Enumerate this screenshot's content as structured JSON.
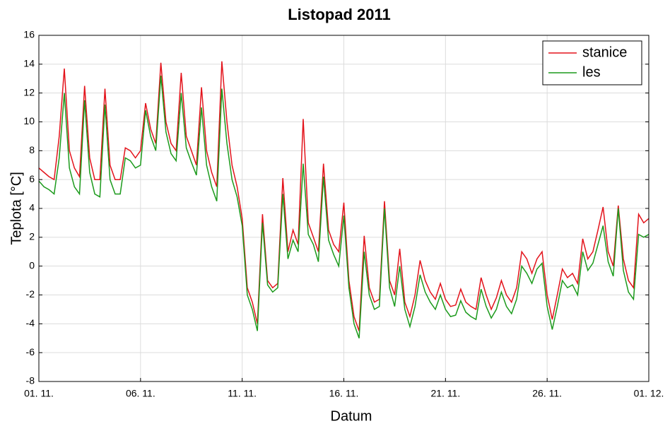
{
  "chart_data": {
    "type": "line",
    "title": "Listopad 2011",
    "xlabel": "Datum",
    "ylabel": "Teplota [°C]",
    "x": [
      0,
      0.25,
      0.5,
      0.75,
      1,
      1.25,
      1.5,
      1.75,
      2,
      2.25,
      2.5,
      2.75,
      3,
      3.25,
      3.5,
      3.75,
      4,
      4.25,
      4.5,
      4.75,
      5,
      5.25,
      5.5,
      5.75,
      6,
      6.25,
      6.5,
      6.75,
      7,
      7.25,
      7.5,
      7.75,
      8,
      8.25,
      8.5,
      8.75,
      9,
      9.25,
      9.5,
      9.75,
      10,
      10.25,
      10.5,
      10.75,
      11,
      11.25,
      11.5,
      11.75,
      12,
      12.25,
      12.5,
      12.75,
      13,
      13.25,
      13.5,
      13.75,
      14,
      14.25,
      14.5,
      14.75,
      15,
      15.25,
      15.5,
      15.75,
      16,
      16.25,
      16.5,
      16.75,
      17,
      17.25,
      17.5,
      17.75,
      18,
      18.25,
      18.5,
      18.75,
      19,
      19.25,
      19.5,
      19.75,
      20,
      20.25,
      20.5,
      20.75,
      21,
      21.25,
      21.5,
      21.75,
      22,
      22.25,
      22.5,
      22.75,
      23,
      23.25,
      23.5,
      23.75,
      24,
      24.25,
      24.5,
      24.75,
      25,
      25.25,
      25.5,
      25.75,
      26,
      26.25,
      26.5,
      26.75,
      27,
      27.25,
      27.5,
      27.75,
      28,
      28.25,
      28.5,
      28.75,
      29,
      29.25,
      29.5,
      29.75,
      30
    ],
    "series": [
      {
        "name": "stanice",
        "color": "#e3131b",
        "values": [
          6.8,
          6.5,
          6.2,
          6.0,
          9.0,
          13.7,
          8.0,
          6.8,
          6.2,
          12.5,
          7.5,
          6.0,
          6.0,
          12.3,
          7.0,
          6.0,
          6.0,
          8.2,
          8.0,
          7.5,
          8.0,
          11.3,
          9.5,
          8.5,
          14.1,
          10.0,
          8.5,
          8.0,
          13.4,
          9.0,
          8.0,
          7.0,
          12.4,
          8.0,
          6.5,
          5.5,
          14.2,
          10.0,
          7.0,
          5.5,
          3.3,
          -1.5,
          -2.5,
          -4.0,
          3.6,
          -1.0,
          -1.5,
          -1.2,
          6.1,
          1.0,
          2.5,
          1.5,
          10.2,
          3.0,
          2.0,
          1.0,
          7.1,
          2.5,
          1.5,
          1.0,
          4.4,
          -1.0,
          -3.5,
          -4.5,
          2.1,
          -1.5,
          -2.5,
          -2.3,
          4.5,
          -1.0,
          -2.0,
          1.2,
          -2.5,
          -3.5,
          -2.0,
          0.4,
          -1.0,
          -1.8,
          -2.3,
          -1.2,
          -2.3,
          -2.8,
          -2.7,
          -1.6,
          -2.5,
          -2.8,
          -3.0,
          -0.8,
          -2.0,
          -3.0,
          -2.2,
          -1.0,
          -2.0,
          -2.5,
          -1.5,
          1.0,
          0.5,
          -0.5,
          0.5,
          1.0,
          -2.0,
          -3.7,
          -2.0,
          -0.2,
          -0.8,
          -0.5,
          -1.2,
          1.9,
          0.5,
          1.0,
          2.5,
          4.1,
          1.0,
          0.0,
          4.2,
          0.5,
          -1.0,
          -1.5,
          3.6,
          3.0,
          3.3
        ]
      },
      {
        "name": "les",
        "color": "#1c9a1c",
        "values": [
          5.9,
          5.5,
          5.3,
          5.0,
          7.5,
          12.0,
          6.8,
          5.5,
          5.0,
          11.5,
          6.5,
          5.0,
          4.8,
          11.2,
          6.0,
          5.0,
          5.0,
          7.5,
          7.3,
          6.8,
          7.0,
          10.8,
          9.0,
          8.0,
          13.2,
          9.3,
          7.8,
          7.3,
          12.0,
          8.2,
          7.2,
          6.3,
          11.0,
          7.0,
          5.5,
          4.5,
          12.3,
          8.5,
          6.0,
          4.8,
          2.8,
          -2.0,
          -3.0,
          -4.5,
          3.0,
          -1.3,
          -1.8,
          -1.5,
          5.0,
          0.5,
          1.8,
          1.0,
          7.1,
          2.2,
          1.5,
          0.3,
          6.2,
          1.8,
          0.8,
          0.0,
          3.5,
          -1.5,
          -4.0,
          -5.0,
          1.0,
          -2.0,
          -3.0,
          -2.8,
          4.0,
          -1.5,
          -2.8,
          0.0,
          -3.0,
          -4.2,
          -2.8,
          -0.6,
          -1.8,
          -2.5,
          -3.0,
          -2.0,
          -3.0,
          -3.5,
          -3.4,
          -2.4,
          -3.2,
          -3.5,
          -3.7,
          -1.6,
          -2.8,
          -3.6,
          -3.0,
          -1.8,
          -2.8,
          -3.3,
          -2.3,
          0.0,
          -0.5,
          -1.2,
          -0.2,
          0.2,
          -2.8,
          -4.4,
          -2.8,
          -1.0,
          -1.5,
          -1.3,
          -2.0,
          1.0,
          -0.3,
          0.2,
          1.5,
          2.8,
          0.3,
          -0.7,
          4.0,
          -0.3,
          -1.8,
          -2.3,
          2.2,
          2.0,
          2.2
        ]
      }
    ],
    "xlim": [
      0,
      30
    ],
    "xticks": [
      {
        "value": 0,
        "label": "01. 11."
      },
      {
        "value": 5,
        "label": "06. 11."
      },
      {
        "value": 10,
        "label": "11. 11."
      },
      {
        "value": 15,
        "label": "16. 11."
      },
      {
        "value": 20,
        "label": "21. 11."
      },
      {
        "value": 25,
        "label": "26. 11."
      },
      {
        "value": 30,
        "label": "01. 12."
      }
    ],
    "ylim": [
      -8,
      16
    ],
    "yticks": [
      -8,
      -6,
      -4,
      -2,
      0,
      2,
      4,
      6,
      8,
      10,
      12,
      14,
      16
    ],
    "grid": true,
    "legend": "upper right"
  }
}
